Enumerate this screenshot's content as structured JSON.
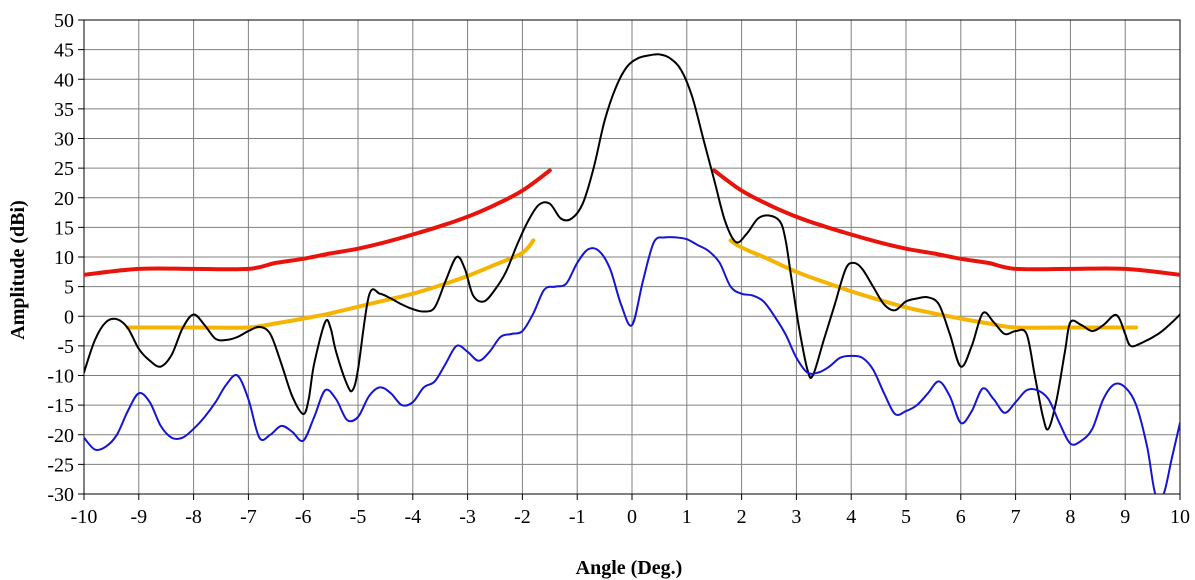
{
  "chart_data": {
    "type": "line",
    "xlabel": "Angle (Deg.)",
    "ylabel": "Amplitude (dBi)",
    "xlim": [
      -10,
      10
    ],
    "ylim": [
      -30,
      50
    ],
    "x_ticks": [
      -10,
      -9,
      -8,
      -7,
      -6,
      -5,
      -4,
      -3,
      -2,
      -1,
      0,
      1,
      2,
      3,
      4,
      5,
      6,
      7,
      8,
      9,
      10
    ],
    "y_ticks": [
      -30,
      -25,
      -20,
      -15,
      -10,
      -5,
      0,
      5,
      10,
      15,
      20,
      25,
      30,
      35,
      40,
      45,
      50
    ],
    "grid": true,
    "legend": "none",
    "series": [
      {
        "color": "#e8140c",
        "width": 4,
        "points": [
          [
            -10,
            7
          ],
          [
            -9,
            8
          ],
          [
            -8,
            8
          ],
          [
            -7,
            8
          ],
          [
            -6.5,
            9
          ],
          [
            -6,
            9.7
          ],
          [
            -5.5,
            10.6
          ],
          [
            -5,
            11.4
          ],
          [
            -4.5,
            12.5
          ],
          [
            -4,
            13.8
          ],
          [
            -3.5,
            15.2
          ],
          [
            -3,
            16.8
          ],
          [
            -2.5,
            18.8
          ],
          [
            -2,
            21.2
          ],
          [
            -1.5,
            24.6
          ]
        ]
      },
      {
        "color": "#e8140c",
        "width": 4,
        "points": [
          [
            1.5,
            24.6
          ],
          [
            2,
            21.2
          ],
          [
            2.5,
            18.8
          ],
          [
            3,
            16.8
          ],
          [
            3.5,
            15.2
          ],
          [
            4,
            13.8
          ],
          [
            4.5,
            12.5
          ],
          [
            5,
            11.4
          ],
          [
            5.5,
            10.6
          ],
          [
            6,
            9.7
          ],
          [
            6.5,
            9
          ],
          [
            7,
            8
          ],
          [
            8,
            8
          ],
          [
            9,
            8
          ],
          [
            10,
            7
          ]
        ]
      },
      {
        "color": "#f5b400",
        "width": 4,
        "points": [
          [
            -9.2,
            -1.9
          ],
          [
            -8,
            -1.9
          ],
          [
            -7,
            -1.9
          ],
          [
            -6.5,
            -1.2
          ],
          [
            -6,
            -0.4
          ],
          [
            -5.5,
            0.5
          ],
          [
            -5,
            1.6
          ],
          [
            -4.5,
            2.7
          ],
          [
            -4,
            3.8
          ],
          [
            -3.5,
            5.2
          ],
          [
            -3,
            6.8
          ],
          [
            -2.5,
            8.7
          ],
          [
            -2,
            10.7
          ],
          [
            -1.8,
            12.8
          ]
        ]
      },
      {
        "color": "#f5b400",
        "width": 4,
        "points": [
          [
            1.8,
            12.8
          ],
          [
            2,
            11.6
          ],
          [
            2.5,
            9.6
          ],
          [
            3,
            7.5
          ],
          [
            3.5,
            5.8
          ],
          [
            4,
            4.2
          ],
          [
            4.5,
            2.8
          ],
          [
            5,
            1.5
          ],
          [
            5.5,
            0.5
          ],
          [
            6,
            -0.4
          ],
          [
            6.5,
            -1.2
          ],
          [
            7,
            -1.9
          ],
          [
            8,
            -1.9
          ],
          [
            9.2,
            -1.9
          ]
        ]
      },
      {
        "color": "#000000",
        "width": 2,
        "points": [
          [
            -10,
            -9.5
          ],
          [
            -9.8,
            -4
          ],
          [
            -9.6,
            -1
          ],
          [
            -9.4,
            -0.5
          ],
          [
            -9.2,
            -2
          ],
          [
            -9,
            -5.5
          ],
          [
            -8.8,
            -7.5
          ],
          [
            -8.6,
            -8.5
          ],
          [
            -8.4,
            -6.5
          ],
          [
            -8.2,
            -2
          ],
          [
            -8,
            0.3
          ],
          [
            -7.8,
            -1.5
          ],
          [
            -7.6,
            -3.8
          ],
          [
            -7.4,
            -4
          ],
          [
            -7.2,
            -3.5
          ],
          [
            -7,
            -2.5
          ],
          [
            -6.8,
            -1.8
          ],
          [
            -6.6,
            -3
          ],
          [
            -6.4,
            -8
          ],
          [
            -6.2,
            -13.5
          ],
          [
            -6,
            -16.5
          ],
          [
            -5.9,
            -14
          ],
          [
            -5.8,
            -8
          ],
          [
            -5.6,
            -1
          ],
          [
            -5.5,
            -2
          ],
          [
            -5.4,
            -6
          ],
          [
            -5.2,
            -11.5
          ],
          [
            -5.1,
            -12.5
          ],
          [
            -5,
            -9
          ],
          [
            -4.8,
            3.5
          ],
          [
            -4.6,
            3.8
          ],
          [
            -4.4,
            3
          ],
          [
            -4.2,
            2
          ],
          [
            -4,
            1.2
          ],
          [
            -3.8,
            0.8
          ],
          [
            -3.6,
            1.5
          ],
          [
            -3.4,
            6
          ],
          [
            -3.2,
            10
          ],
          [
            -3.05,
            8
          ],
          [
            -2.9,
            3.5
          ],
          [
            -2.7,
            2.5
          ],
          [
            -2.5,
            4.5
          ],
          [
            -2.3,
            7.5
          ],
          [
            -2.1,
            12
          ],
          [
            -1.9,
            16
          ],
          [
            -1.7,
            18.8
          ],
          [
            -1.5,
            19
          ],
          [
            -1.3,
            16.5
          ],
          [
            -1.1,
            16.5
          ],
          [
            -0.9,
            19
          ],
          [
            -0.7,
            25
          ],
          [
            -0.5,
            33
          ],
          [
            -0.3,
            38.5
          ],
          [
            -0.1,
            42
          ],
          [
            0.1,
            43.5
          ],
          [
            0.3,
            44
          ],
          [
            0.5,
            44.2
          ],
          [
            0.7,
            43.5
          ],
          [
            0.9,
            41.5
          ],
          [
            1.1,
            37
          ],
          [
            1.3,
            30
          ],
          [
            1.5,
            23
          ],
          [
            1.7,
            16
          ],
          [
            1.9,
            12.5
          ],
          [
            2.1,
            14
          ],
          [
            2.3,
            16.5
          ],
          [
            2.5,
            17
          ],
          [
            2.7,
            16
          ],
          [
            2.8,
            13
          ],
          [
            2.9,
            7
          ],
          [
            3.05,
            -2
          ],
          [
            3.2,
            -9
          ],
          [
            3.3,
            -10
          ],
          [
            3.5,
            -4
          ],
          [
            3.7,
            2
          ],
          [
            3.9,
            8
          ],
          [
            4.05,
            9
          ],
          [
            4.2,
            8
          ],
          [
            4.4,
            5
          ],
          [
            4.6,
            2
          ],
          [
            4.8,
            1
          ],
          [
            5,
            2.5
          ],
          [
            5.2,
            3
          ],
          [
            5.4,
            3.2
          ],
          [
            5.6,
            2
          ],
          [
            5.8,
            -3
          ],
          [
            6,
            -8.5
          ],
          [
            6.2,
            -5
          ],
          [
            6.4,
            0.5
          ],
          [
            6.6,
            -1
          ],
          [
            6.8,
            -3
          ],
          [
            7,
            -2.5
          ],
          [
            7.2,
            -3
          ],
          [
            7.35,
            -10
          ],
          [
            7.5,
            -17
          ],
          [
            7.6,
            -19
          ],
          [
            7.75,
            -14
          ],
          [
            7.9,
            -6
          ],
          [
            8,
            -1
          ],
          [
            8.2,
            -1.5
          ],
          [
            8.4,
            -2.5
          ],
          [
            8.6,
            -1.5
          ],
          [
            8.8,
            0.2
          ],
          [
            8.9,
            -0.5
          ],
          [
            9,
            -3
          ],
          [
            9.1,
            -5
          ],
          [
            9.3,
            -4.5
          ],
          [
            9.6,
            -3
          ],
          [
            9.8,
            -1.5
          ],
          [
            10,
            0.3
          ]
        ]
      },
      {
        "color": "#1414d2",
        "width": 2,
        "points": [
          [
            -10,
            -20.5
          ],
          [
            -9.8,
            -22.5
          ],
          [
            -9.6,
            -22
          ],
          [
            -9.4,
            -20
          ],
          [
            -9.2,
            -16
          ],
          [
            -9,
            -13
          ],
          [
            -8.8,
            -14.5
          ],
          [
            -8.6,
            -18.5
          ],
          [
            -8.4,
            -20.5
          ],
          [
            -8.2,
            -20.5
          ],
          [
            -8,
            -19
          ],
          [
            -7.8,
            -17
          ],
          [
            -7.6,
            -14.5
          ],
          [
            -7.4,
            -11.5
          ],
          [
            -7.2,
            -10
          ],
          [
            -7,
            -14
          ],
          [
            -6.8,
            -20.5
          ],
          [
            -6.6,
            -20
          ],
          [
            -6.4,
            -18.5
          ],
          [
            -6.2,
            -19.5
          ],
          [
            -6,
            -21
          ],
          [
            -5.8,
            -17
          ],
          [
            -5.6,
            -12.5
          ],
          [
            -5.4,
            -14
          ],
          [
            -5.2,
            -17.5
          ],
          [
            -5,
            -17
          ],
          [
            -4.8,
            -13.5
          ],
          [
            -4.6,
            -12
          ],
          [
            -4.4,
            -13
          ],
          [
            -4.2,
            -15
          ],
          [
            -4,
            -14.5
          ],
          [
            -3.8,
            -12
          ],
          [
            -3.6,
            -11
          ],
          [
            -3.4,
            -8
          ],
          [
            -3.2,
            -5
          ],
          [
            -3,
            -6
          ],
          [
            -2.8,
            -7.5
          ],
          [
            -2.6,
            -6
          ],
          [
            -2.4,
            -3.5
          ],
          [
            -2.2,
            -3
          ],
          [
            -2,
            -2.5
          ],
          [
            -1.8,
            0.5
          ],
          [
            -1.6,
            4.5
          ],
          [
            -1.4,
            5
          ],
          [
            -1.2,
            5.5
          ],
          [
            -1,
            9
          ],
          [
            -0.8,
            11.3
          ],
          [
            -0.6,
            11
          ],
          [
            -0.4,
            8
          ],
          [
            -0.2,
            2
          ],
          [
            0,
            -1.5
          ],
          [
            0.2,
            6
          ],
          [
            0.4,
            12.5
          ],
          [
            0.6,
            13.3
          ],
          [
            0.8,
            13.3
          ],
          [
            1,
            13
          ],
          [
            1.2,
            12
          ],
          [
            1.4,
            11
          ],
          [
            1.6,
            9
          ],
          [
            1.8,
            5
          ],
          [
            2,
            3.8
          ],
          [
            2.2,
            3.5
          ],
          [
            2.4,
            2.5
          ],
          [
            2.6,
            0
          ],
          [
            2.8,
            -3
          ],
          [
            3,
            -7
          ],
          [
            3.2,
            -9.5
          ],
          [
            3.4,
            -9.5
          ],
          [
            3.6,
            -8.5
          ],
          [
            3.8,
            -7
          ],
          [
            4,
            -6.7
          ],
          [
            4.2,
            -7
          ],
          [
            4.4,
            -9
          ],
          [
            4.6,
            -13
          ],
          [
            4.8,
            -16.5
          ],
          [
            5,
            -16
          ],
          [
            5.2,
            -15
          ],
          [
            5.4,
            -13
          ],
          [
            5.6,
            -11
          ],
          [
            5.8,
            -13.5
          ],
          [
            6,
            -18
          ],
          [
            6.2,
            -16
          ],
          [
            6.4,
            -12.2
          ],
          [
            6.6,
            -14
          ],
          [
            6.8,
            -16.3
          ],
          [
            7,
            -14.5
          ],
          [
            7.2,
            -12.5
          ],
          [
            7.4,
            -12.5
          ],
          [
            7.6,
            -14
          ],
          [
            7.8,
            -18
          ],
          [
            8,
            -21.5
          ],
          [
            8.2,
            -21
          ],
          [
            8.4,
            -19
          ],
          [
            8.6,
            -14
          ],
          [
            8.8,
            -11.5
          ],
          [
            9,
            -12
          ],
          [
            9.2,
            -15
          ],
          [
            9.4,
            -22
          ],
          [
            9.55,
            -30
          ],
          [
            9.7,
            -30
          ],
          [
            9.85,
            -24
          ],
          [
            10,
            -18
          ]
        ]
      }
    ]
  }
}
